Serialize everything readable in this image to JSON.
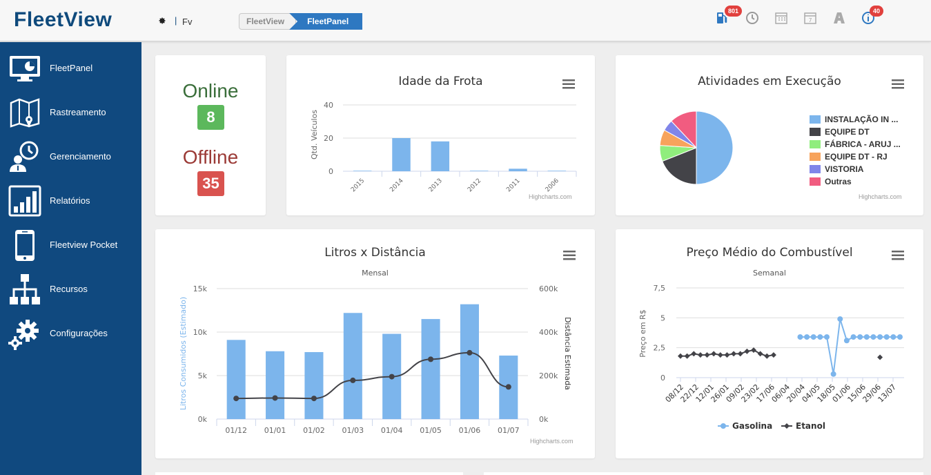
{
  "app": {
    "logo": "FleetView",
    "user": "Fv",
    "separator": "|"
  },
  "breadcrumb": [
    {
      "label": "FleetView"
    },
    {
      "label": "FleetPanel"
    }
  ],
  "header_icons": [
    {
      "name": "fuel-pump-icon",
      "badge": "801"
    },
    {
      "name": "clock-icon",
      "badge": ""
    },
    {
      "name": "calendar-icon",
      "badge": ""
    },
    {
      "name": "calendar-day-icon",
      "badge": ""
    },
    {
      "name": "road-icon",
      "badge": ""
    },
    {
      "name": "info-icon",
      "badge": "40"
    }
  ],
  "sidebar": {
    "items": [
      {
        "label": "FleetPanel",
        "icon": "monitor-chart-icon"
      },
      {
        "label": "Rastreamento",
        "icon": "map-pin-icon"
      },
      {
        "label": "Gerenciamento",
        "icon": "user-clock-icon"
      },
      {
        "label": "Relatórios",
        "icon": "bar-report-icon"
      },
      {
        "label": "Fleetview Pocket",
        "icon": "smartphone-icon"
      },
      {
        "label": "Recursos",
        "icon": "hierarchy-icon"
      },
      {
        "label": "Configurações",
        "icon": "gears-icon"
      }
    ]
  },
  "status": {
    "online_label": "Online",
    "online_count": "8",
    "offline_label": "Offline",
    "offline_count": "35"
  },
  "colors": {
    "online": "#3a6e3a",
    "online_badge": "#5cb85c",
    "offline": "#9b3a36",
    "offline_badge": "#d9534f",
    "bar": "#7cb5ec",
    "line": "#434348",
    "sidebar": "#10497f"
  },
  "credits": "Highcharts.com",
  "chart_data": [
    {
      "type": "bar",
      "title": "Idade da Frota",
      "ylabel": "Qtd. Veículos",
      "categories": [
        "2015",
        "2014",
        "2013",
        "2012",
        "2011",
        "2006"
      ],
      "values": [
        0.3,
        20,
        18,
        0.3,
        1.5,
        0.3
      ],
      "ylim": [
        0,
        40
      ],
      "yticks": [
        "0",
        "20",
        "40"
      ]
    },
    {
      "type": "pie",
      "title": "Atividades em Execução",
      "legend": "right",
      "slices": [
        {
          "name": "INSTALAÇÃO IN ...",
          "value": 50,
          "color": "#7cb5ec"
        },
        {
          "name": "EQUIPE DT",
          "value": 19,
          "color": "#434348"
        },
        {
          "name": "FÁBRICA - ARUJ ...",
          "value": 7,
          "color": "#90ed7d"
        },
        {
          "name": "EQUIPE DT - RJ",
          "value": 7,
          "color": "#f7a35c"
        },
        {
          "name": "VISTORIA",
          "value": 5,
          "color": "#8085e9"
        },
        {
          "name": "Outras",
          "value": 12,
          "color": "#f15c80"
        }
      ]
    },
    {
      "type": "bar",
      "title": "Litros x Distância",
      "subtitle": "Mensal",
      "ylabel": "Litros Consumidos (Estimado)",
      "y2label": "Distância Estimada",
      "categories": [
        "01/12",
        "01/01",
        "01/02",
        "01/03",
        "01/04",
        "01/05",
        "01/06",
        "01/07"
      ],
      "yticks": [
        "0k",
        "5k",
        "10k",
        "15k"
      ],
      "y2ticks": [
        "0k",
        "200k",
        "400k",
        "600k"
      ],
      "ylim": [
        0,
        15000
      ],
      "y2lim": [
        0,
        600000
      ],
      "series": [
        {
          "name": "Litros",
          "type": "bar",
          "values": [
            9100,
            7800,
            7700,
            12200,
            9800,
            11500,
            13200,
            7300
          ]
        },
        {
          "name": "Distância",
          "type": "line",
          "values": [
            95000,
            97000,
            95000,
            178000,
            195000,
            275000,
            305000,
            148000
          ]
        }
      ]
    },
    {
      "type": "line",
      "title": "Preço Médio do Combustível",
      "subtitle": "Semanal",
      "ylabel": "Preço em R$",
      "yticks": [
        "0",
        "2,5",
        "5",
        "7,5"
      ],
      "ylim": [
        0,
        7.5
      ],
      "xticks": [
        "08/12",
        "22/12",
        "12/01",
        "26/01",
        "09/02",
        "23/02",
        "17/06",
        "06/04",
        "20/04",
        "04/05",
        "18/05",
        "01/06",
        "15/06",
        "29/06",
        "13/07"
      ],
      "legend": "bottom",
      "series": [
        {
          "name": "Gasolina",
          "color": "#7cb5ec",
          "values": [
            null,
            null,
            null,
            null,
            null,
            null,
            null,
            null,
            null,
            null,
            null,
            null,
            null,
            null,
            null,
            null,
            null,
            null,
            3.4,
            3.4,
            3.4,
            3.4,
            3.4,
            0.3,
            4.9,
            3.1,
            3.4,
            3.4,
            3.4,
            3.4,
            3.4,
            3.4,
            3.4,
            3.4
          ]
        },
        {
          "name": "Etanol",
          "color": "#434348",
          "values": [
            1.8,
            1.8,
            2.0,
            1.9,
            1.9,
            2.0,
            1.9,
            1.9,
            2.0,
            2.0,
            2.2,
            2.3,
            2.0,
            1.8,
            1.9,
            null,
            null,
            null,
            null,
            null,
            null,
            null,
            null,
            null,
            null,
            null,
            null,
            null,
            null,
            null,
            1.7,
            null,
            null,
            null
          ]
        }
      ]
    }
  ]
}
